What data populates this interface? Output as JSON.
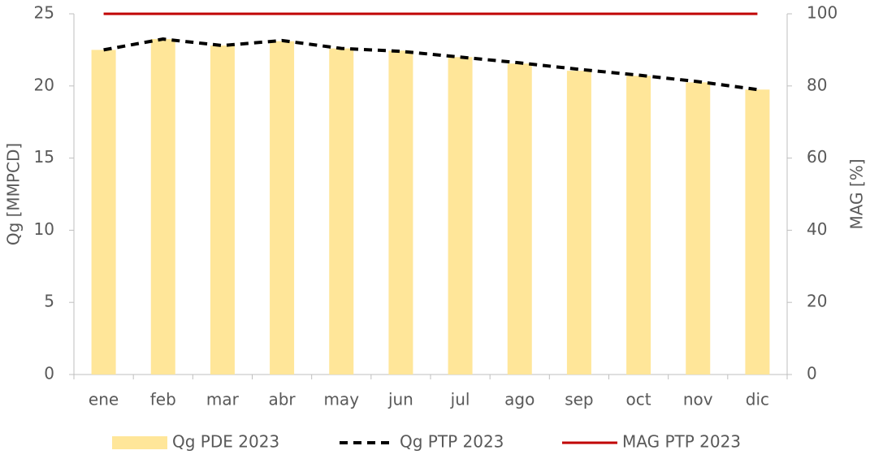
{
  "chart_data": {
    "type": "bar_line",
    "categories": [
      "ene",
      "feb",
      "mar",
      "abr",
      "may",
      "jun",
      "jul",
      "ago",
      "sep",
      "oct",
      "nov",
      "dic"
    ],
    "series": [
      {
        "name": "Qg PDE 2023",
        "type": "bar",
        "color": "#FFE699",
        "values": [
          22.5,
          23.25,
          22.8,
          23.1,
          22.6,
          22.45,
          22.0,
          21.55,
          21.05,
          20.7,
          20.25,
          19.75
        ]
      },
      {
        "name": "Qg PTP 2023",
        "type": "line",
        "dashed": true,
        "color": "#000000",
        "values": [
          22.5,
          23.25,
          22.8,
          23.15,
          22.6,
          22.4,
          22.0,
          21.6,
          21.15,
          20.75,
          20.3,
          19.75
        ]
      },
      {
        "name": "MAG PTP 2023",
        "type": "line",
        "axis": "y2",
        "color": "#C00000",
        "values": [
          100,
          100,
          100,
          100,
          100,
          100,
          100,
          100,
          100,
          100,
          100,
          100
        ]
      }
    ],
    "ylabel": "Qg [MMPCD]",
    "y2label": "MAG [%]",
    "ylim": [
      0,
      25
    ],
    "yticks": [
      0,
      5,
      10,
      15,
      20,
      25
    ],
    "y2lim": [
      0,
      100
    ],
    "y2ticks": [
      0,
      20,
      40,
      60,
      80,
      100
    ],
    "legend": "bottom"
  }
}
